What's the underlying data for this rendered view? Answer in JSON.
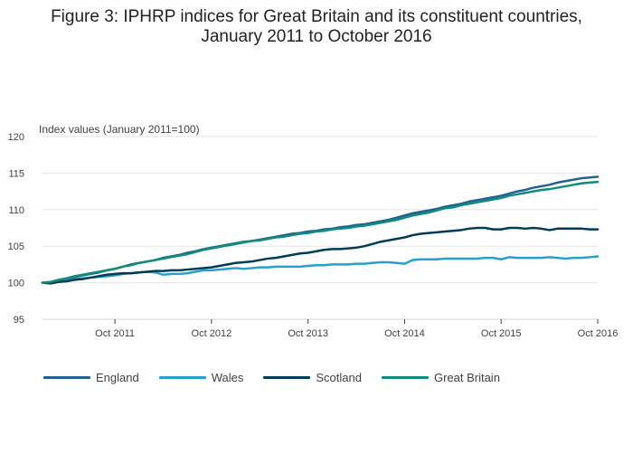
{
  "title_line1": "Figure 3: IPHRP indices for Great Britain and its constituent countries,",
  "title_line2": "January 2011 to October 2016",
  "chart_data": {
    "type": "line",
    "title": "Figure 3: IPHRP indices for Great Britain and its constituent countries, January 2011 to October 2016",
    "ylabel": "Index values (January 2011=100)",
    "xlabel": "",
    "ylim": [
      95,
      120
    ],
    "yticks": [
      95,
      100,
      105,
      110,
      115,
      120
    ],
    "xticks": [
      {
        "label": "Oct 2011",
        "value": "2011-10"
      },
      {
        "label": "Oct 2012",
        "value": "2012-10"
      },
      {
        "label": "Oct 2013",
        "value": "2013-10"
      },
      {
        "label": "Oct 2014",
        "value": "2014-10"
      },
      {
        "label": "Oct 2015",
        "value": "2015-10"
      },
      {
        "label": "Oct 2016",
        "value": "2016-10"
      }
    ],
    "x_start": "2011-01",
    "x_end": "2016-10",
    "grid": true,
    "legend_position": "bottom-left",
    "series": [
      {
        "name": "England",
        "color": "#206095",
        "points": [
          [
            "2011-01",
            100.0
          ],
          [
            "2011-02",
            100.1
          ],
          [
            "2011-03",
            100.3
          ],
          [
            "2011-04",
            100.5
          ],
          [
            "2011-05",
            100.8
          ],
          [
            "2011-06",
            101.0
          ],
          [
            "2011-07",
            101.2
          ],
          [
            "2011-08",
            101.4
          ],
          [
            "2011-09",
            101.7
          ],
          [
            "2011-10",
            101.9
          ],
          [
            "2011-11",
            102.2
          ],
          [
            "2011-12",
            102.5
          ],
          [
            "2012-01",
            102.7
          ],
          [
            "2012-02",
            102.9
          ],
          [
            "2012-03",
            103.1
          ],
          [
            "2012-04",
            103.4
          ],
          [
            "2012-05",
            103.6
          ],
          [
            "2012-06",
            103.8
          ],
          [
            "2012-07",
            104.1
          ],
          [
            "2012-08",
            104.3
          ],
          [
            "2012-09",
            104.6
          ],
          [
            "2012-10",
            104.8
          ],
          [
            "2012-11",
            105.0
          ],
          [
            "2012-12",
            105.2
          ],
          [
            "2013-01",
            105.4
          ],
          [
            "2013-02",
            105.6
          ],
          [
            "2013-03",
            105.7
          ],
          [
            "2013-04",
            105.9
          ],
          [
            "2013-05",
            106.1
          ],
          [
            "2013-06",
            106.3
          ],
          [
            "2013-07",
            106.5
          ],
          [
            "2013-08",
            106.7
          ],
          [
            "2013-09",
            106.8
          ],
          [
            "2013-10",
            107.0
          ],
          [
            "2013-11",
            107.1
          ],
          [
            "2013-12",
            107.3
          ],
          [
            "2014-01",
            107.4
          ],
          [
            "2014-02",
            107.6
          ],
          [
            "2014-03",
            107.7
          ],
          [
            "2014-04",
            107.9
          ],
          [
            "2014-05",
            108.0
          ],
          [
            "2014-06",
            108.2
          ],
          [
            "2014-07",
            108.4
          ],
          [
            "2014-08",
            108.6
          ],
          [
            "2014-09",
            108.9
          ],
          [
            "2014-10",
            109.2
          ],
          [
            "2014-11",
            109.5
          ],
          [
            "2014-12",
            109.7
          ],
          [
            "2015-01",
            109.9
          ],
          [
            "2015-02",
            110.1
          ],
          [
            "2015-03",
            110.4
          ],
          [
            "2015-04",
            110.6
          ],
          [
            "2015-05",
            110.8
          ],
          [
            "2015-06",
            111.1
          ],
          [
            "2015-07",
            111.3
          ],
          [
            "2015-08",
            111.5
          ],
          [
            "2015-09",
            111.7
          ],
          [
            "2015-10",
            111.9
          ],
          [
            "2015-11",
            112.2
          ],
          [
            "2015-12",
            112.5
          ],
          [
            "2016-01",
            112.7
          ],
          [
            "2016-02",
            113.0
          ],
          [
            "2016-03",
            113.2
          ],
          [
            "2016-04",
            113.4
          ],
          [
            "2016-05",
            113.7
          ],
          [
            "2016-06",
            113.9
          ],
          [
            "2016-07",
            114.1
          ],
          [
            "2016-08",
            114.3
          ],
          [
            "2016-09",
            114.4
          ],
          [
            "2016-10",
            114.5
          ]
        ]
      },
      {
        "name": "Wales",
        "color": "#27a0cc",
        "points": [
          [
            "2011-01",
            100.0
          ],
          [
            "2011-02",
            100.0
          ],
          [
            "2011-03",
            100.1
          ],
          [
            "2011-04",
            100.3
          ],
          [
            "2011-05",
            100.5
          ],
          [
            "2011-06",
            100.6
          ],
          [
            "2011-07",
            100.7
          ],
          [
            "2011-08",
            100.8
          ],
          [
            "2011-09",
            100.9
          ],
          [
            "2011-10",
            101.0
          ],
          [
            "2011-11",
            101.2
          ],
          [
            "2011-12",
            101.3
          ],
          [
            "2012-01",
            101.4
          ],
          [
            "2012-02",
            101.5
          ],
          [
            "2012-03",
            101.4
          ],
          [
            "2012-04",
            101.1
          ],
          [
            "2012-05",
            101.2
          ],
          [
            "2012-06",
            101.2
          ],
          [
            "2012-07",
            101.3
          ],
          [
            "2012-08",
            101.5
          ],
          [
            "2012-09",
            101.7
          ],
          [
            "2012-10",
            101.7
          ],
          [
            "2012-11",
            101.8
          ],
          [
            "2012-12",
            101.9
          ],
          [
            "2013-01",
            102.0
          ],
          [
            "2013-02",
            101.9
          ],
          [
            "2013-03",
            102.0
          ],
          [
            "2013-04",
            102.1
          ],
          [
            "2013-05",
            102.1
          ],
          [
            "2013-06",
            102.2
          ],
          [
            "2013-07",
            102.2
          ],
          [
            "2013-08",
            102.2
          ],
          [
            "2013-09",
            102.2
          ],
          [
            "2013-10",
            102.3
          ],
          [
            "2013-11",
            102.4
          ],
          [
            "2013-12",
            102.4
          ],
          [
            "2014-01",
            102.5
          ],
          [
            "2014-02",
            102.5
          ],
          [
            "2014-03",
            102.5
          ],
          [
            "2014-04",
            102.6
          ],
          [
            "2014-05",
            102.6
          ],
          [
            "2014-06",
            102.7
          ],
          [
            "2014-07",
            102.8
          ],
          [
            "2014-08",
            102.8
          ],
          [
            "2014-09",
            102.7
          ],
          [
            "2014-10",
            102.6
          ],
          [
            "2014-11",
            103.1
          ],
          [
            "2014-12",
            103.2
          ],
          [
            "2015-01",
            103.2
          ],
          [
            "2015-02",
            103.2
          ],
          [
            "2015-03",
            103.3
          ],
          [
            "2015-04",
            103.3
          ],
          [
            "2015-05",
            103.3
          ],
          [
            "2015-06",
            103.3
          ],
          [
            "2015-07",
            103.3
          ],
          [
            "2015-08",
            103.4
          ],
          [
            "2015-09",
            103.4
          ],
          [
            "2015-10",
            103.2
          ],
          [
            "2015-11",
            103.5
          ],
          [
            "2015-12",
            103.4
          ],
          [
            "2016-01",
            103.4
          ],
          [
            "2016-02",
            103.4
          ],
          [
            "2016-03",
            103.4
          ],
          [
            "2016-04",
            103.5
          ],
          [
            "2016-05",
            103.4
          ],
          [
            "2016-06",
            103.3
          ],
          [
            "2016-07",
            103.4
          ],
          [
            "2016-08",
            103.4
          ],
          [
            "2016-09",
            103.5
          ],
          [
            "2016-10",
            103.6
          ]
        ]
      },
      {
        "name": "Scotland",
        "color": "#003c57",
        "points": [
          [
            "2011-01",
            100.0
          ],
          [
            "2011-02",
            99.9
          ],
          [
            "2011-03",
            100.1
          ],
          [
            "2011-04",
            100.2
          ],
          [
            "2011-05",
            100.4
          ],
          [
            "2011-06",
            100.5
          ],
          [
            "2011-07",
            100.7
          ],
          [
            "2011-08",
            100.9
          ],
          [
            "2011-09",
            101.1
          ],
          [
            "2011-10",
            101.2
          ],
          [
            "2011-11",
            101.3
          ],
          [
            "2011-12",
            101.3
          ],
          [
            "2012-01",
            101.4
          ],
          [
            "2012-02",
            101.5
          ],
          [
            "2012-03",
            101.6
          ],
          [
            "2012-04",
            101.6
          ],
          [
            "2012-05",
            101.7
          ],
          [
            "2012-06",
            101.7
          ],
          [
            "2012-07",
            101.8
          ],
          [
            "2012-08",
            101.9
          ],
          [
            "2012-09",
            102.0
          ],
          [
            "2012-10",
            102.1
          ],
          [
            "2012-11",
            102.3
          ],
          [
            "2012-12",
            102.5
          ],
          [
            "2013-01",
            102.7
          ],
          [
            "2013-02",
            102.8
          ],
          [
            "2013-03",
            102.9
          ],
          [
            "2013-04",
            103.1
          ],
          [
            "2013-05",
            103.3
          ],
          [
            "2013-06",
            103.4
          ],
          [
            "2013-07",
            103.6
          ],
          [
            "2013-08",
            103.8
          ],
          [
            "2013-09",
            104.0
          ],
          [
            "2013-10",
            104.1
          ],
          [
            "2013-11",
            104.3
          ],
          [
            "2013-12",
            104.5
          ],
          [
            "2014-01",
            104.6
          ],
          [
            "2014-02",
            104.6
          ],
          [
            "2014-03",
            104.7
          ],
          [
            "2014-04",
            104.8
          ],
          [
            "2014-05",
            105.0
          ],
          [
            "2014-06",
            105.3
          ],
          [
            "2014-07",
            105.6
          ],
          [
            "2014-08",
            105.8
          ],
          [
            "2014-09",
            106.0
          ],
          [
            "2014-10",
            106.2
          ],
          [
            "2014-11",
            106.5
          ],
          [
            "2014-12",
            106.7
          ],
          [
            "2015-01",
            106.8
          ],
          [
            "2015-02",
            106.9
          ],
          [
            "2015-03",
            107.0
          ],
          [
            "2015-04",
            107.1
          ],
          [
            "2015-05",
            107.2
          ],
          [
            "2015-06",
            107.4
          ],
          [
            "2015-07",
            107.5
          ],
          [
            "2015-08",
            107.5
          ],
          [
            "2015-09",
            107.3
          ],
          [
            "2015-10",
            107.3
          ],
          [
            "2015-11",
            107.5
          ],
          [
            "2015-12",
            107.5
          ],
          [
            "2016-01",
            107.4
          ],
          [
            "2016-02",
            107.5
          ],
          [
            "2016-03",
            107.4
          ],
          [
            "2016-04",
            107.2
          ],
          [
            "2016-05",
            107.4
          ],
          [
            "2016-06",
            107.4
          ],
          [
            "2016-07",
            107.4
          ],
          [
            "2016-08",
            107.4
          ],
          [
            "2016-09",
            107.3
          ],
          [
            "2016-10",
            107.3
          ]
        ]
      },
      {
        "name": "Great Britain",
        "color": "#118c7b",
        "points": [
          [
            "2011-01",
            100.0
          ],
          [
            "2011-02",
            100.1
          ],
          [
            "2011-03",
            100.4
          ],
          [
            "2011-04",
            100.6
          ],
          [
            "2011-05",
            100.9
          ],
          [
            "2011-06",
            101.1
          ],
          [
            "2011-07",
            101.3
          ],
          [
            "2011-08",
            101.5
          ],
          [
            "2011-09",
            101.7
          ],
          [
            "2011-10",
            101.9
          ],
          [
            "2011-11",
            102.2
          ],
          [
            "2011-12",
            102.4
          ],
          [
            "2012-01",
            102.7
          ],
          [
            "2012-02",
            102.9
          ],
          [
            "2012-03",
            103.1
          ],
          [
            "2012-04",
            103.3
          ],
          [
            "2012-05",
            103.5
          ],
          [
            "2012-06",
            103.7
          ],
          [
            "2012-07",
            103.9
          ],
          [
            "2012-08",
            104.2
          ],
          [
            "2012-09",
            104.5
          ],
          [
            "2012-10",
            104.7
          ],
          [
            "2012-11",
            104.9
          ],
          [
            "2012-12",
            105.1
          ],
          [
            "2013-01",
            105.3
          ],
          [
            "2013-02",
            105.5
          ],
          [
            "2013-03",
            105.7
          ],
          [
            "2013-04",
            105.8
          ],
          [
            "2013-05",
            106.0
          ],
          [
            "2013-06",
            106.2
          ],
          [
            "2013-07",
            106.3
          ],
          [
            "2013-08",
            106.5
          ],
          [
            "2013-09",
            106.7
          ],
          [
            "2013-10",
            106.8
          ],
          [
            "2013-11",
            107.0
          ],
          [
            "2013-12",
            107.1
          ],
          [
            "2014-01",
            107.3
          ],
          [
            "2014-02",
            107.4
          ],
          [
            "2014-03",
            107.5
          ],
          [
            "2014-04",
            107.7
          ],
          [
            "2014-05",
            107.8
          ],
          [
            "2014-06",
            108.0
          ],
          [
            "2014-07",
            108.2
          ],
          [
            "2014-08",
            108.4
          ],
          [
            "2014-09",
            108.6
          ],
          [
            "2014-10",
            108.9
          ],
          [
            "2014-11",
            109.2
          ],
          [
            "2014-12",
            109.4
          ],
          [
            "2015-01",
            109.6
          ],
          [
            "2015-02",
            109.9
          ],
          [
            "2015-03",
            110.2
          ],
          [
            "2015-04",
            110.3
          ],
          [
            "2015-05",
            110.6
          ],
          [
            "2015-06",
            110.8
          ],
          [
            "2015-07",
            111.0
          ],
          [
            "2015-08",
            111.2
          ],
          [
            "2015-09",
            111.4
          ],
          [
            "2015-10",
            111.6
          ],
          [
            "2015-11",
            111.9
          ],
          [
            "2015-12",
            112.1
          ],
          [
            "2016-01",
            112.3
          ],
          [
            "2016-02",
            112.5
          ],
          [
            "2016-03",
            112.7
          ],
          [
            "2016-04",
            112.8
          ],
          [
            "2016-05",
            113.0
          ],
          [
            "2016-06",
            113.2
          ],
          [
            "2016-07",
            113.4
          ],
          [
            "2016-08",
            113.6
          ],
          [
            "2016-09",
            113.7
          ],
          [
            "2016-10",
            113.8
          ]
        ]
      }
    ]
  }
}
